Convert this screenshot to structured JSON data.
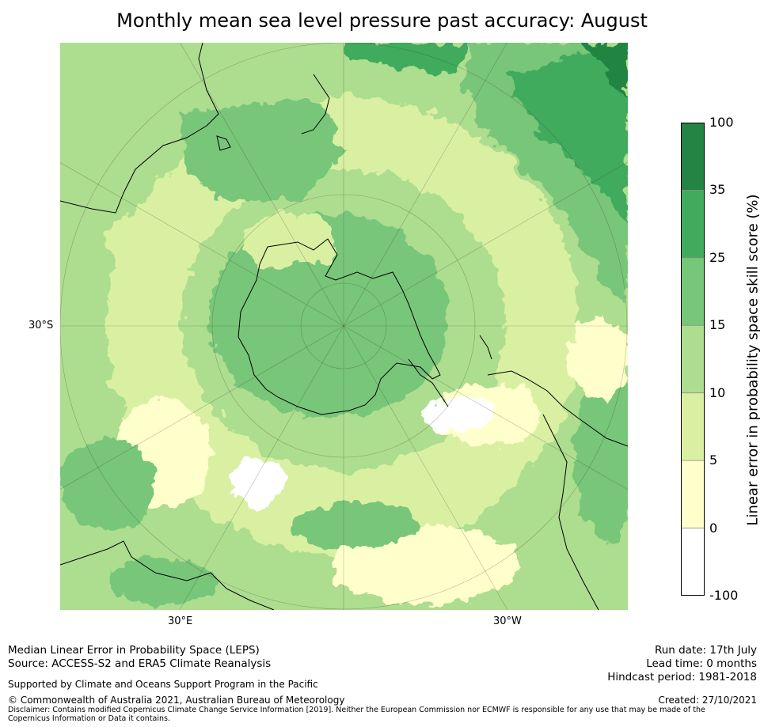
{
  "title": "Monthly mean sea level pressure past accuracy: August",
  "map": {
    "projection": "south-polar-stereographic",
    "lat_label": "30°S",
    "lon_labels": [
      "30°E",
      "30°W"
    ],
    "land_feature": "Antarctica",
    "colors": {
      "below_0": "#ffffff",
      "0_5": "#ffffcc",
      "5_10": "#d9f0a3",
      "10_15": "#addd8e",
      "15_25": "#78c679",
      "25_35": "#41ab5d",
      "35_100": "#238443"
    }
  },
  "colorbar": {
    "label": "Linear error in probability space skill score (%)",
    "ticks": [
      "100",
      "35",
      "25",
      "15",
      "10",
      "5",
      "0",
      "-100"
    ],
    "bands": [
      {
        "from": "35",
        "to": "100",
        "color": "#238443"
      },
      {
        "from": "25",
        "to": "35",
        "color": "#41ab5d"
      },
      {
        "from": "15",
        "to": "25",
        "color": "#78c679"
      },
      {
        "from": "10",
        "to": "15",
        "color": "#addd8e"
      },
      {
        "from": "5",
        "to": "10",
        "color": "#d9f0a3"
      },
      {
        "from": "0",
        "to": "5",
        "color": "#ffffcc"
      },
      {
        "from": "-100",
        "to": "0",
        "color": "#ffffff"
      }
    ]
  },
  "footer": {
    "left1": "Median Linear Error in Probability Space (LEPS)",
    "left2": "Source: ACCESS-S2 and ERA5 Climate Reanalysis",
    "left3": "Supported by Climate and Oceans Support Program in the Pacific",
    "left4": "© Commonwealth of Australia 2021, Australian Bureau of Meteorology",
    "right1": "Run date: 17th July",
    "right2": "Lead time: 0 months",
    "right3": "Hindcast period: 1981-2018",
    "right4": "Created: 27/10/2021",
    "disclaimer": "Disclaimer: Contains modified Copernicus Climate Change Service Information [2019]. Neither the European Commission nor ECMWF is responsible for any use that may be made of the Copernicus Information or Data it contains."
  }
}
